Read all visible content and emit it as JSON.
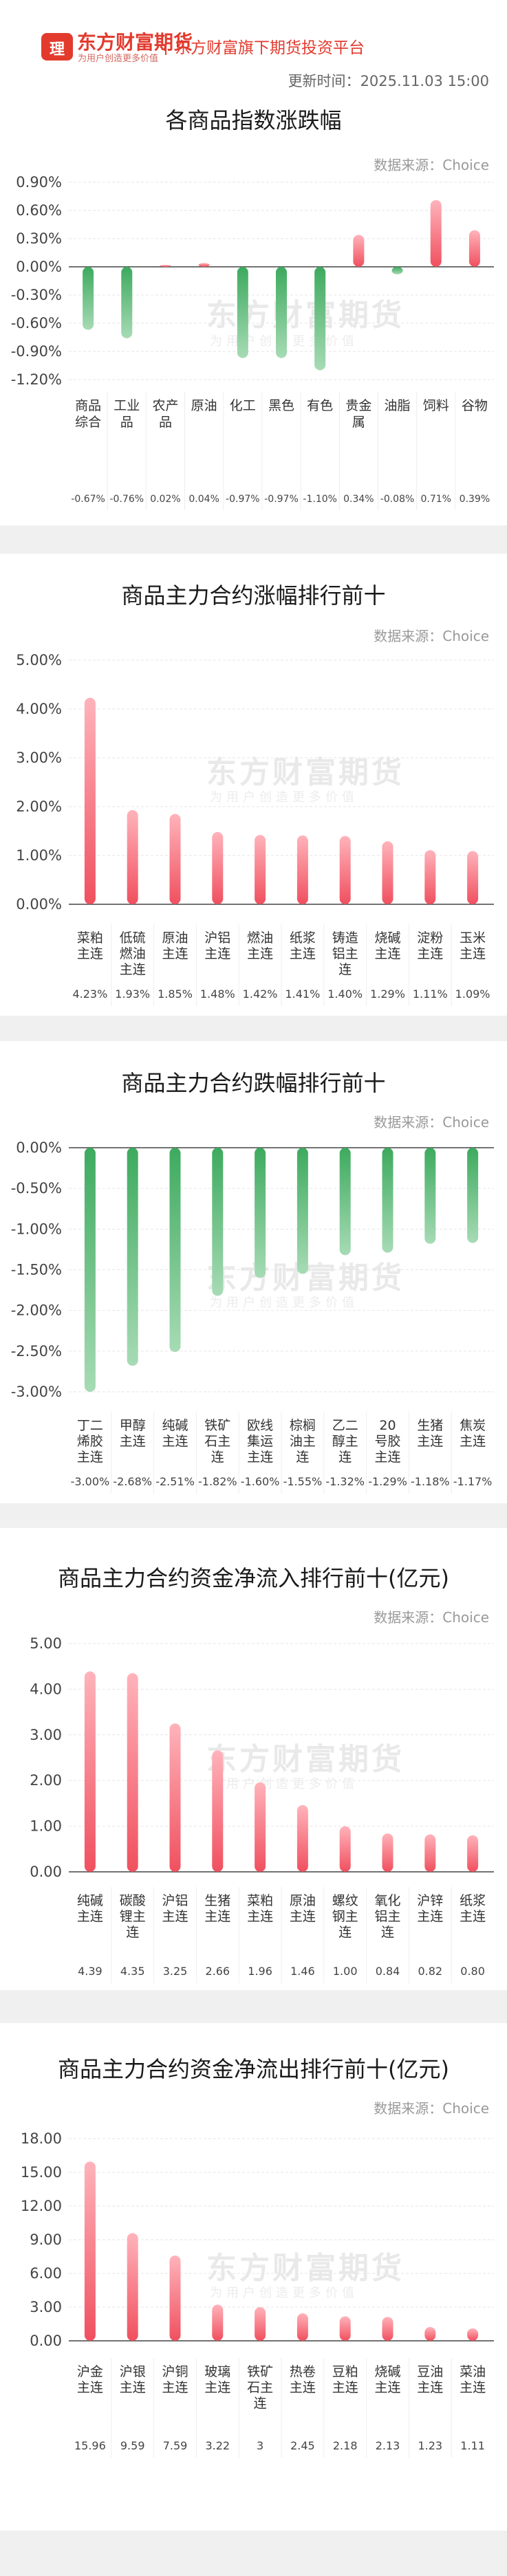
{
  "header": {
    "logo_badge": "理",
    "logo_title": "东方财富期货",
    "logo_sub": "为用户创造更多价值",
    "platform": "东方财富旗下期货投资平台",
    "update_label": "更新时间：",
    "update_time": "2025.11.03 15:00"
  },
  "watermark": {
    "title": "东方财富期货",
    "sub": "为用户创造更多价值"
  },
  "colors": {
    "up": "#f0505f",
    "down": "#3daa5e",
    "brand": "#e23b2e"
  },
  "chart_data": [
    {
      "type": "bar",
      "title": "各商品指数涨跌幅",
      "source": "数据来源：Choice",
      "categories": [
        "商品综合",
        "工业品",
        "农产品",
        "原油",
        "化工",
        "黑色",
        "有色",
        "贵金属",
        "油脂",
        "饲料",
        "谷物"
      ],
      "values": [
        -0.67,
        -0.76,
        0.02,
        0.04,
        -0.97,
        -0.97,
        -1.1,
        0.34,
        -0.08,
        0.71,
        0.39
      ],
      "value_labels": [
        "-0.67%",
        "-0.76%",
        "0.02%",
        "0.04%",
        "-0.97%",
        "-0.97%",
        "-1.10%",
        "0.34%",
        "-0.08%",
        "0.71%",
        "0.39%"
      ],
      "yticks": [
        "0.90%",
        "0.60%",
        "0.30%",
        "0.00%",
        "-0.30%",
        "-0.60%",
        "-0.90%",
        "-1.20%"
      ],
      "ylim": [
        -1.2,
        0.9
      ]
    },
    {
      "type": "bar",
      "title": "商品主力合约涨幅排行前十",
      "source": "数据来源：Choice",
      "categories": [
        "菜粕主连",
        "低硫燃油主连",
        "原油主连",
        "沪铝主连",
        "燃油主连",
        "纸浆主连",
        "铸造铝主连",
        "烧碱主连",
        "淀粉主连",
        "玉米主连"
      ],
      "values": [
        4.23,
        1.93,
        1.85,
        1.48,
        1.42,
        1.41,
        1.4,
        1.29,
        1.11,
        1.09
      ],
      "value_labels": [
        "4.23%",
        "1.93%",
        "1.85%",
        "1.48%",
        "1.42%",
        "1.41%",
        "1.40%",
        "1.29%",
        "1.11%",
        "1.09%"
      ],
      "yticks": [
        "5.00%",
        "4.00%",
        "3.00%",
        "2.00%",
        "1.00%",
        "0.00%"
      ],
      "ylim": [
        0,
        5
      ]
    },
    {
      "type": "bar",
      "title": "商品主力合约跌幅排行前十",
      "source": "数据来源：Choice",
      "categories": [
        "丁二烯胶主连",
        "甲醇主连",
        "纯碱主连",
        "铁矿石主连",
        "欧线集运主连",
        "棕榈油主连",
        "乙二醇主连",
        "20号胶主连",
        "生猪主连",
        "焦炭主连"
      ],
      "values": [
        -3.0,
        -2.68,
        -2.51,
        -1.82,
        -1.6,
        -1.55,
        -1.32,
        -1.29,
        -1.18,
        -1.17
      ],
      "value_labels": [
        "-3.00%",
        "-2.68%",
        "-2.51%",
        "-1.82%",
        "-1.60%",
        "-1.55%",
        "-1.32%",
        "-1.29%",
        "-1.18%",
        "-1.17%"
      ],
      "yticks": [
        "0.00%",
        "-0.50%",
        "-1.00%",
        "-1.50%",
        "-2.00%",
        "-2.50%",
        "-3.00%"
      ],
      "ylim": [
        -3,
        0
      ]
    },
    {
      "type": "bar",
      "title": "商品主力合约资金净流入排行前十(亿元)",
      "source": "数据来源：Choice",
      "categories": [
        "纯碱主连",
        "碳酸锂主连",
        "沪铝主连",
        "生猪主连",
        "菜粕主连",
        "原油主连",
        "螺纹钢主连",
        "氧化铝主连",
        "沪锌主连",
        "纸浆主连"
      ],
      "values": [
        4.39,
        4.35,
        3.25,
        2.66,
        1.96,
        1.46,
        1.0,
        0.84,
        0.82,
        0.8
      ],
      "value_labels": [
        "4.39",
        "4.35",
        "3.25",
        "2.66",
        "1.96",
        "1.46",
        "1.00",
        "0.84",
        "0.82",
        "0.80"
      ],
      "yticks": [
        "5.00",
        "4.00",
        "3.00",
        "2.00",
        "1.00",
        "0.00"
      ],
      "ylim": [
        0,
        5
      ]
    },
    {
      "type": "bar",
      "title": "商品主力合约资金净流出排行前十(亿元)",
      "source": "数据来源：Choice",
      "categories": [
        "沪金主连",
        "沪银主连",
        "沪铜主连",
        "玻璃主连",
        "铁矿石主连",
        "热卷主连",
        "豆粕主连",
        "烧碱主连",
        "豆油主连",
        "菜油主连"
      ],
      "values": [
        15.96,
        9.59,
        7.59,
        3.22,
        3,
        2.45,
        2.18,
        2.13,
        1.23,
        1.11
      ],
      "value_labels": [
        "15.96",
        "9.59",
        "7.59",
        "3.22",
        "3",
        "2.45",
        "2.18",
        "2.13",
        "1.23",
        "1.11"
      ],
      "yticks": [
        "18.00",
        "15.00",
        "12.00",
        "9.00",
        "6.00",
        "3.00",
        "0.00"
      ],
      "ylim": [
        0,
        18
      ]
    }
  ]
}
